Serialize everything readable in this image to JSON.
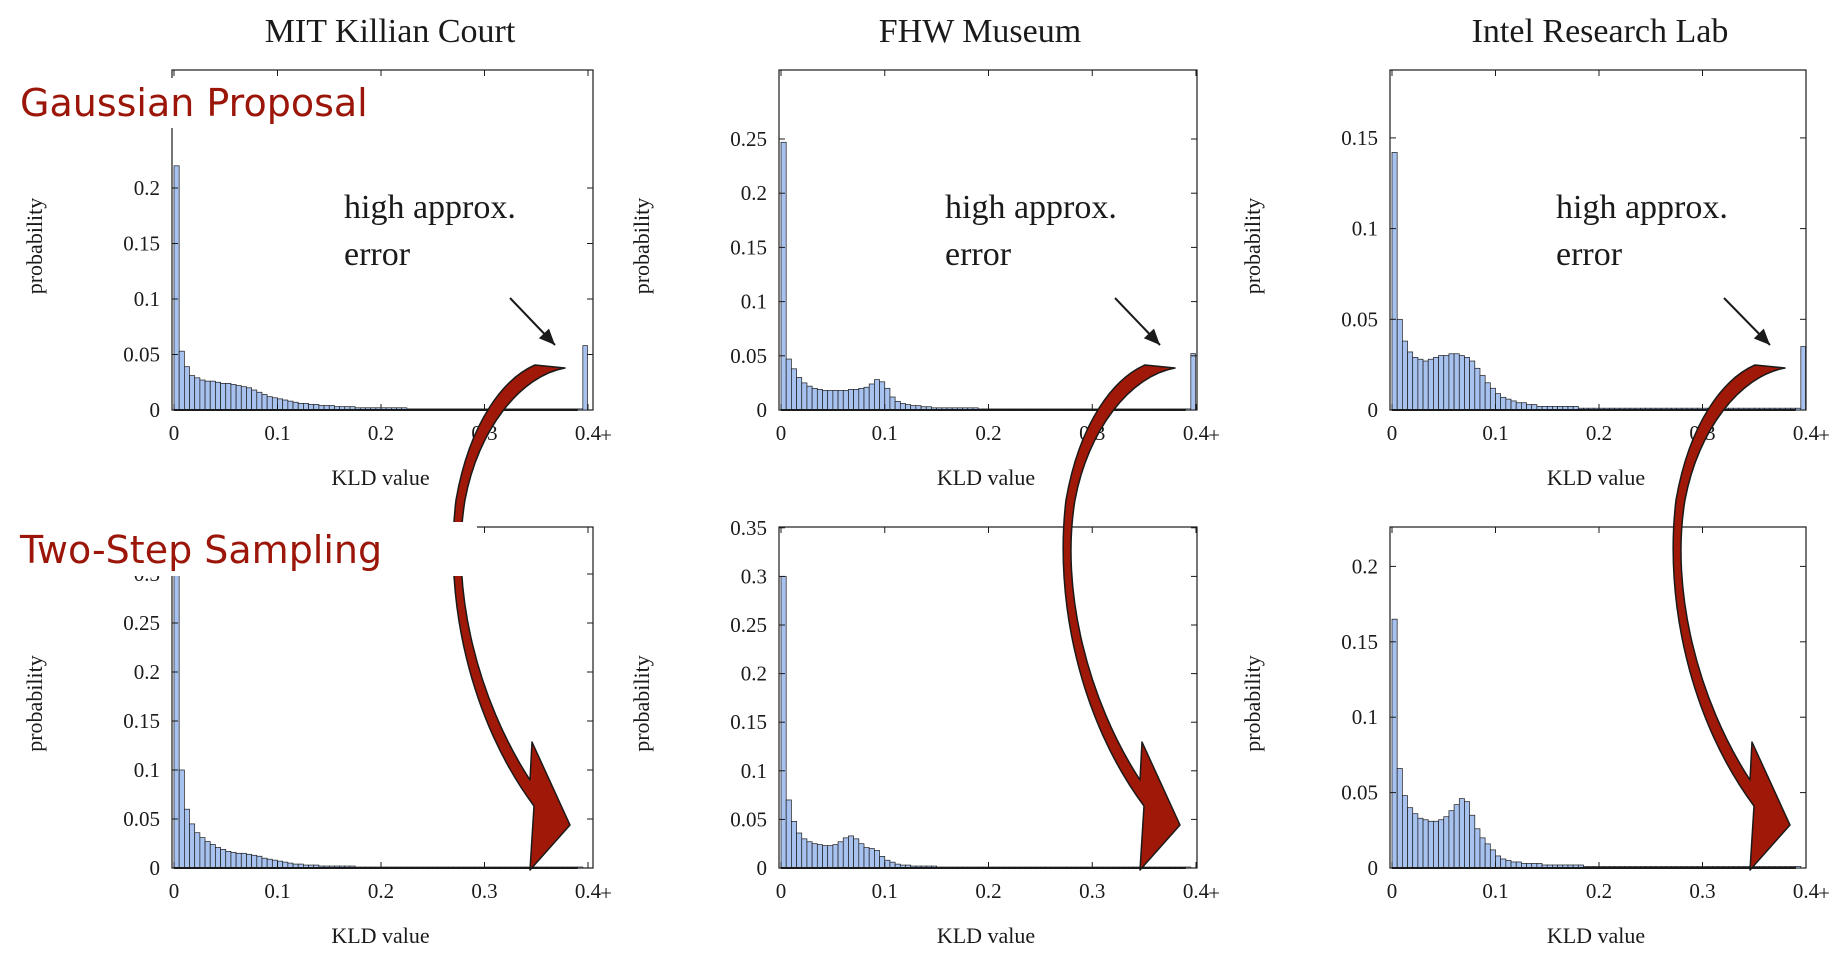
{
  "colors": {
    "bar_fill": "#a8c2f0",
    "accent_red": "#9b1508",
    "arrow_fill": "#a01808"
  },
  "titles": [
    "MIT Killian Court",
    "FHW Museum",
    "Intel Research Lab"
  ],
  "row_labels": [
    "Gaussian Proposal",
    "Two-Step Sampling"
  ],
  "annotation": {
    "line1": "high approx.",
    "line2": "error"
  },
  "chart_data": [
    {
      "type": "bar",
      "xlabel": "KLD value",
      "ylabel": "probability",
      "xlim": [
        0,
        0.4
      ],
      "ylim": [
        0,
        0.25
      ],
      "xticks": [
        "0",
        "0.1",
        "0.2",
        "0.3",
        "0.4"
      ],
      "yticks": [
        "0",
        "0.05",
        "0.1",
        "0.15",
        "0.2"
      ],
      "bin_width": 0.005,
      "values": [
        0.22,
        0.053,
        0.039,
        0.031,
        0.029,
        0.027,
        0.026,
        0.026,
        0.025,
        0.024,
        0.024,
        0.023,
        0.022,
        0.021,
        0.02,
        0.018,
        0.016,
        0.014,
        0.012,
        0.011,
        0.01,
        0.009,
        0.008,
        0.007,
        0.006,
        0.006,
        0.005,
        0.005,
        0.004,
        0.004,
        0.004,
        0.003,
        0.003,
        0.003,
        0.003,
        0.002,
        0.002,
        0.002,
        0.002,
        0.002,
        0.002,
        0.002,
        0.002,
        0.002,
        0.002,
        0.001,
        0.001,
        0.001,
        0.001,
        0.001,
        0.001,
        0.001,
        0.001,
        0.001,
        0.001,
        0.001,
        0.001,
        0.001,
        0.001,
        0.001,
        0.001,
        0.001,
        0.001,
        0.001,
        0.001,
        0.001,
        0.001,
        0.001,
        0.001,
        0.001,
        0.001,
        0.001,
        0.001,
        0.001,
        0.001,
        0.001,
        0.001,
        0.001,
        0.001,
        0.058
      ]
    },
    {
      "type": "bar",
      "xlabel": "KLD value",
      "ylabel": "probability",
      "xlim": [
        0,
        0.4
      ],
      "ylim": [
        0,
        0.25
      ],
      "xticks": [
        "0",
        "0.1",
        "0.2",
        "0.3",
        "0.4"
      ],
      "yticks": [
        "0",
        "0.05",
        "0.1",
        "0.15",
        "0.2",
        "0.25"
      ],
      "bin_width": 0.005,
      "values": [
        0.247,
        0.047,
        0.038,
        0.03,
        0.025,
        0.022,
        0.02,
        0.019,
        0.018,
        0.018,
        0.018,
        0.018,
        0.018,
        0.019,
        0.019,
        0.02,
        0.021,
        0.024,
        0.028,
        0.026,
        0.02,
        0.012,
        0.008,
        0.006,
        0.005,
        0.004,
        0.004,
        0.003,
        0.003,
        0.002,
        0.002,
        0.002,
        0.002,
        0.002,
        0.002,
        0.002,
        0.002,
        0.002,
        0.001,
        0.001,
        0.001,
        0.001,
        0.001,
        0.001,
        0.001,
        0.001,
        0.001,
        0.001,
        0.001,
        0.001,
        0.001,
        0.001,
        0.001,
        0.001,
        0.001,
        0.001,
        0.001,
        0.001,
        0.001,
        0.001,
        0.001,
        0.001,
        0.001,
        0.001,
        0.001,
        0.001,
        0.001,
        0.001,
        0.001,
        0.001,
        0.001,
        0.001,
        0.001,
        0.001,
        0.001,
        0.001,
        0.001,
        0.001,
        0.001,
        0.052
      ]
    },
    {
      "type": "bar",
      "xlabel": "KLD value",
      "ylabel": "probability",
      "xlim": [
        0,
        0.4
      ],
      "ylim": [
        0,
        0.15
      ],
      "xticks": [
        "0",
        "0.1",
        "0.2",
        "0.3",
        "0.4"
      ],
      "yticks": [
        "0",
        "0.05",
        "0.1",
        "0.15"
      ],
      "bin_width": 0.005,
      "values": [
        0.142,
        0.05,
        0.038,
        0.032,
        0.029,
        0.028,
        0.027,
        0.028,
        0.029,
        0.03,
        0.03,
        0.031,
        0.031,
        0.03,
        0.029,
        0.027,
        0.023,
        0.019,
        0.015,
        0.012,
        0.009,
        0.007,
        0.006,
        0.005,
        0.004,
        0.004,
        0.003,
        0.003,
        0.002,
        0.002,
        0.002,
        0.002,
        0.002,
        0.002,
        0.002,
        0.002,
        0.001,
        0.001,
        0.001,
        0.001,
        0.001,
        0.001,
        0.001,
        0.001,
        0.001,
        0.001,
        0.001,
        0.001,
        0.001,
        0.001,
        0.001,
        0.001,
        0.001,
        0.001,
        0.001,
        0.001,
        0.001,
        0.001,
        0.001,
        0.001,
        0.001,
        0.001,
        0.001,
        0.001,
        0.001,
        0.001,
        0.001,
        0.001,
        0.001,
        0.001,
        0.001,
        0.001,
        0.001,
        0.001,
        0.001,
        0.001,
        0.001,
        0.001,
        0.001,
        0.035
      ]
    },
    {
      "type": "bar",
      "xlabel": "KLD value",
      "ylabel": "probability",
      "xlim": [
        0,
        0.4
      ],
      "ylim": [
        0,
        0.35
      ],
      "xticks": [
        "0",
        "0.1",
        "0.2",
        "0.3",
        "0.4"
      ],
      "yticks": [
        "0",
        "0.05",
        "0.1",
        "0.15",
        "0.2",
        "0.25",
        "0.3"
      ],
      "bin_width": 0.005,
      "values": [
        0.33,
        0.1,
        0.06,
        0.045,
        0.036,
        0.031,
        0.027,
        0.024,
        0.021,
        0.019,
        0.017,
        0.016,
        0.015,
        0.015,
        0.014,
        0.013,
        0.012,
        0.01,
        0.009,
        0.008,
        0.007,
        0.006,
        0.005,
        0.004,
        0.004,
        0.003,
        0.003,
        0.003,
        0.002,
        0.002,
        0.002,
        0.002,
        0.002,
        0.002,
        0.002,
        0.001,
        0.001,
        0.001,
        0.001,
        0.001,
        0.001,
        0.001,
        0.001,
        0.001,
        0.001,
        0.001,
        0.001,
        0.001,
        0.001,
        0.001,
        0.001,
        0.001,
        0.001,
        0.001,
        0.001,
        0.001,
        0.001,
        0.001,
        0.001,
        0.001,
        0.001,
        0.001,
        0.001,
        0.001,
        0.001,
        0.001,
        0.001,
        0.001,
        0.001,
        0.001,
        0.001,
        0.001,
        0.001,
        0.001,
        0.001,
        0.001,
        0.001,
        0.001,
        0.001,
        0.0
      ]
    },
    {
      "type": "bar",
      "xlabel": "KLD value",
      "ylabel": "probability",
      "xlim": [
        0,
        0.4
      ],
      "ylim": [
        0,
        0.35
      ],
      "xticks": [
        "0",
        "0.1",
        "0.2",
        "0.3",
        "0.4"
      ],
      "yticks": [
        "0",
        "0.05",
        "0.1",
        "0.15",
        "0.2",
        "0.25",
        "0.3",
        "0.35"
      ],
      "bin_width": 0.005,
      "values": [
        0.3,
        0.07,
        0.048,
        0.036,
        0.03,
        0.027,
        0.025,
        0.024,
        0.023,
        0.023,
        0.024,
        0.027,
        0.031,
        0.033,
        0.03,
        0.025,
        0.021,
        0.02,
        0.018,
        0.012,
        0.008,
        0.006,
        0.004,
        0.003,
        0.003,
        0.002,
        0.002,
        0.002,
        0.002,
        0.002,
        0.001,
        0.001,
        0.001,
        0.001,
        0.001,
        0.001,
        0.001,
        0.001,
        0.001,
        0.001,
        0.001,
        0.001,
        0.001,
        0.001,
        0.001,
        0.001,
        0.001,
        0.001,
        0.001,
        0.001,
        0.001,
        0.001,
        0.001,
        0.001,
        0.001,
        0.001,
        0.001,
        0.001,
        0.001,
        0.001,
        0.001,
        0.001,
        0.001,
        0.001,
        0.001,
        0.001,
        0.001,
        0.001,
        0.001,
        0.001,
        0.001,
        0.001,
        0.001,
        0.001,
        0.001,
        0.001,
        0.001,
        0.001,
        0.001,
        0.0
      ]
    },
    {
      "type": "bar",
      "xlabel": "KLD value",
      "ylabel": "probability",
      "xlim": [
        0,
        0.4
      ],
      "ylim": [
        0,
        0.2
      ],
      "xticks": [
        "0",
        "0.1",
        "0.2",
        "0.3",
        "0.4"
      ],
      "yticks": [
        "0",
        "0.05",
        "0.1",
        "0.15",
        "0.2"
      ],
      "bin_width": 0.005,
      "values": [
        0.165,
        0.066,
        0.048,
        0.04,
        0.036,
        0.033,
        0.032,
        0.031,
        0.031,
        0.032,
        0.034,
        0.038,
        0.042,
        0.046,
        0.044,
        0.035,
        0.026,
        0.02,
        0.016,
        0.012,
        0.008,
        0.006,
        0.005,
        0.004,
        0.004,
        0.003,
        0.003,
        0.003,
        0.003,
        0.002,
        0.002,
        0.002,
        0.002,
        0.002,
        0.002,
        0.002,
        0.002,
        0.001,
        0.001,
        0.001,
        0.001,
        0.001,
        0.001,
        0.001,
        0.001,
        0.001,
        0.001,
        0.001,
        0.001,
        0.001,
        0.001,
        0.001,
        0.001,
        0.001,
        0.001,
        0.001,
        0.001,
        0.001,
        0.001,
        0.001,
        0.001,
        0.001,
        0.001,
        0.001,
        0.001,
        0.001,
        0.001,
        0.001,
        0.001,
        0.001,
        0.001,
        0.001,
        0.001,
        0.001,
        0.001,
        0.001,
        0.001,
        0.001,
        0.001,
        0.0
      ]
    }
  ]
}
